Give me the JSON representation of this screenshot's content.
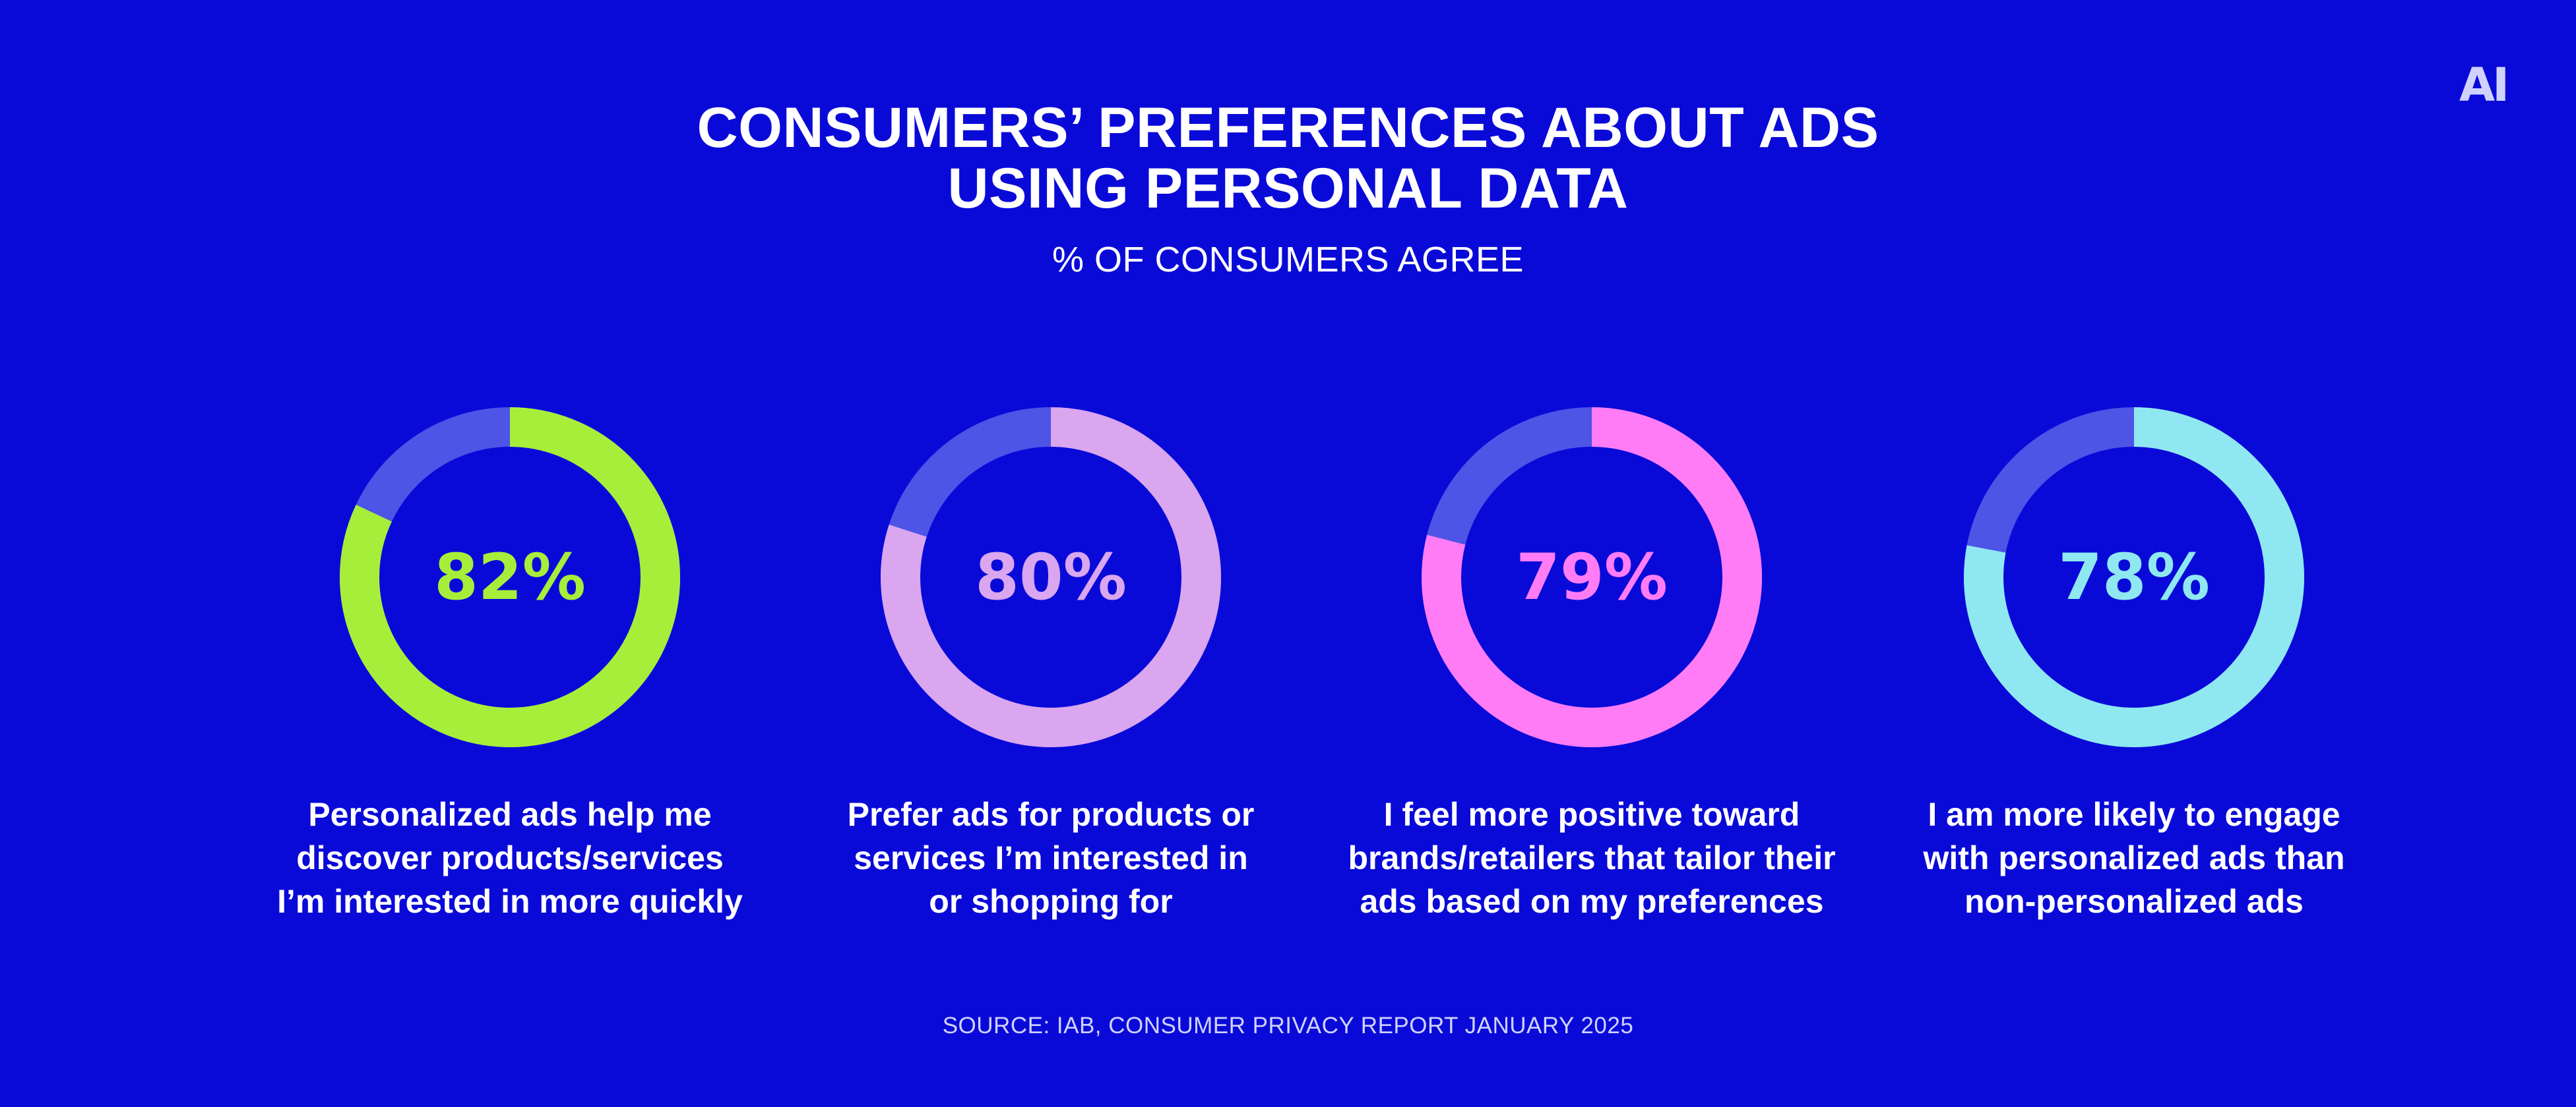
{
  "logo_text": "AI",
  "title": {
    "line1": "CONSUMERS’ PREFERENCES ABOUT ADS",
    "line2": "USING PERSONAL DATA"
  },
  "subtitle": "% OF CONSUMERS AGREE",
  "source": "SOURCE: IAB, CONSUMER PRIVACY REPORT JANUARY 2025",
  "colors": {
    "background": "#0a0ad8",
    "track": "#4d54e6",
    "series": [
      "#a7ee3b",
      "#d9a6ef",
      "#ff7cf6",
      "#8fe8f1"
    ]
  },
  "chart_data": {
    "type": "pie",
    "subtype": "donut",
    "title": "CONSUMERS’ PREFERENCES ABOUT ADS USING PERSONAL DATA",
    "subtitle": "% OF CONSUMERS AGREE",
    "unit": "%",
    "items": [
      {
        "value": 82,
        "value_label": "82%",
        "label_lines": [
          "Personalized ads help me",
          "discover products/services",
          "I’m interested in more quickly"
        ]
      },
      {
        "value": 80,
        "value_label": "80%",
        "label_lines": [
          "Prefer ads for products or",
          "services I’m interested in",
          "or shopping for"
        ]
      },
      {
        "value": 79,
        "value_label": "79%",
        "label_lines": [
          "I feel more positive toward",
          "brands/retailers that tailor their",
          "ads based on my preferences"
        ]
      },
      {
        "value": 78,
        "value_label": "78%",
        "label_lines": [
          "I am more likely to engage",
          "with personalized ads than",
          "non-personalized ads"
        ]
      }
    ]
  }
}
